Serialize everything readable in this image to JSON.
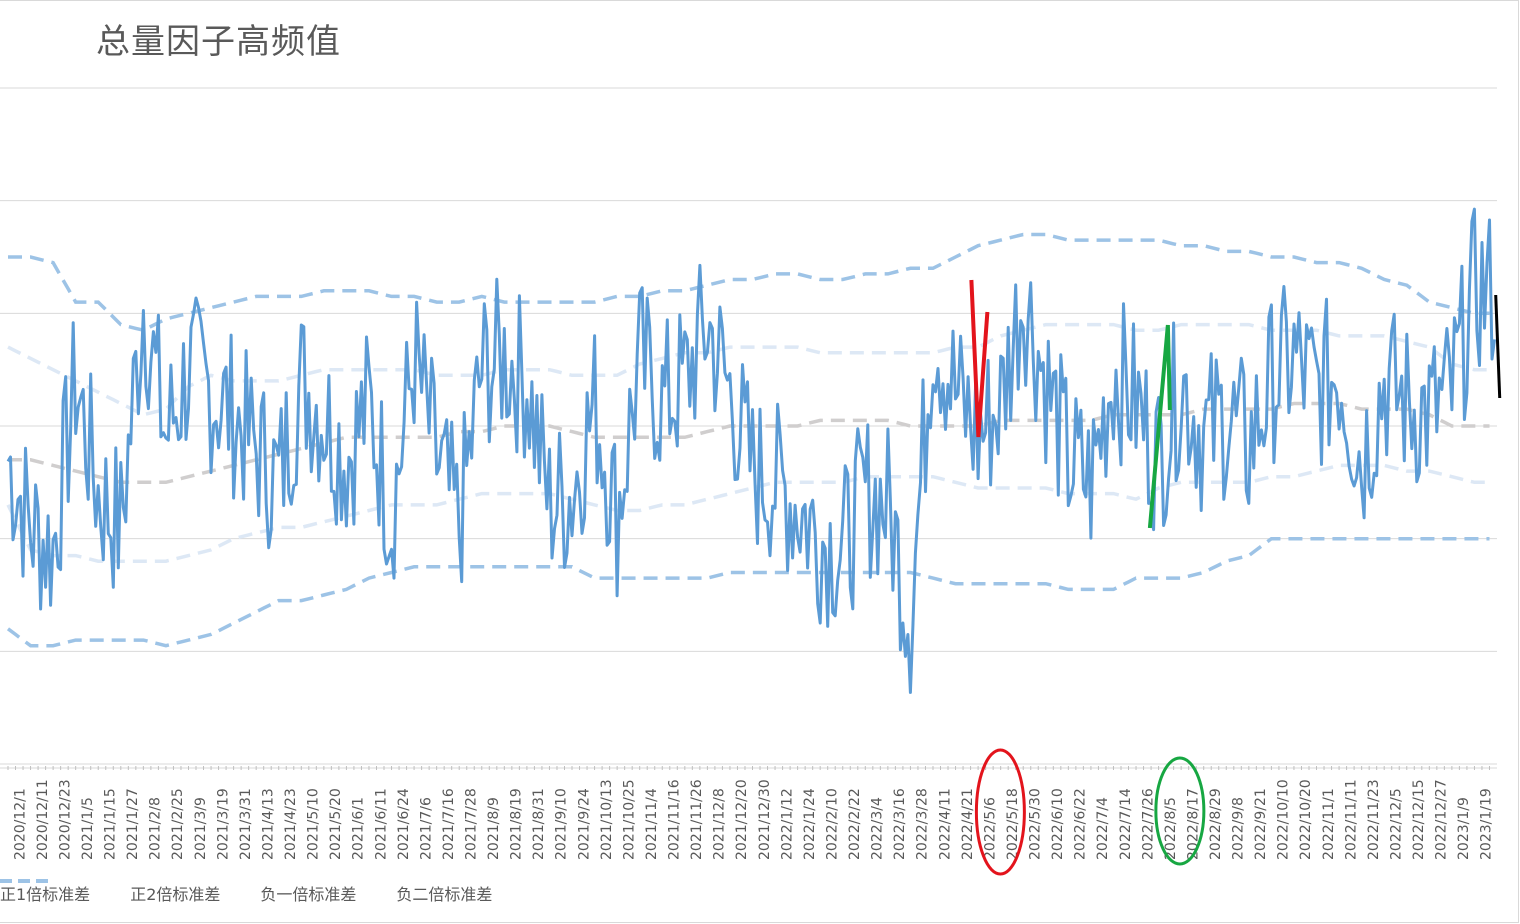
{
  "chart_data": {
    "type": "line",
    "title": "总量因子高频值",
    "xlabel": "",
    "ylabel": "",
    "grid": true,
    "legend_position": "bottom",
    "categories": [
      "2020/12/1",
      "2020/12/11",
      "2020/12/23",
      "2021/1/5",
      "2021/1/15",
      "2021/1/27",
      "2021/2/8",
      "2021/2/25",
      "2021/3/9",
      "2021/3/19",
      "2021/3/31",
      "2021/4/13",
      "2021/4/23",
      "2021/5/10",
      "2021/5/20",
      "2021/6/1",
      "2021/6/11",
      "2021/6/24",
      "2021/7/6",
      "2021/7/16",
      "2021/7/28",
      "2021/8/9",
      "2021/8/19",
      "2021/8/31",
      "2021/9/10",
      "2021/9/24",
      "2021/10/13",
      "2021/10/25",
      "2021/11/4",
      "2021/11/16",
      "2021/11/26",
      "2021/12/8",
      "2021/12/20",
      "2021/12/30",
      "2022/1/12",
      "2022/1/24",
      "2022/2/10",
      "2022/2/22",
      "2022/3/4",
      "2022/3/16",
      "2022/3/28",
      "2022/4/11",
      "2022/4/21",
      "2022/5/6",
      "2022/5/18",
      "2022/5/30",
      "2022/6/10",
      "2022/6/22",
      "2022/7/4",
      "2022/7/14",
      "2022/7/26",
      "2022/8/5",
      "2022/8/17",
      "2022/8/29",
      "2022/9/8",
      "2022/9/21",
      "2022/10/10",
      "2022/10/20",
      "2022/11/1",
      "2022/11/11",
      "2022/11/23",
      "2022/12/5",
      "2022/12/15",
      "2022/12/27",
      "2023/1/9",
      "2023/1/19"
    ],
    "main_values": [
      -0.3,
      -0.9,
      -1.1,
      0.4,
      -0.6,
      -0.9,
      1.1,
      -0.1,
      0.5,
      0.3,
      0.1,
      -0.2,
      -0.5,
      0.4,
      0.1,
      -0.3,
      0.2,
      -0.8,
      0.6,
      -0.3,
      -0.9,
      0.5,
      0.6,
      0.4,
      -0.7,
      -0.6,
      0.2,
      -0.8,
      0.6,
      0.2,
      0.4,
      0.9,
      0.3,
      -0.4,
      -0.5,
      -0.7,
      -1.0,
      -1.1,
      -0.6,
      -0.7,
      -1.7,
      0.9,
      0.3,
      -0.1,
      0.2,
      1.2,
      0.4,
      -0.3,
      -0.5,
      0.5,
      0.2,
      -0.3,
      0.4,
      -0.1,
      0.1,
      -0.2,
      0.4,
      0.6,
      0.3,
      0.5,
      -0.3,
      0.4,
      0.2,
      0.1,
      0.3,
      1.2
    ],
    "series": [
      {
        "name": "正1倍标准差",
        "values": [
          0.7,
          0.6,
          0.5,
          0.4,
          0.3,
          0.2,
          0.1,
          0.15,
          0.35,
          0.45,
          0.4,
          0.4,
          0.4,
          0.45,
          0.5,
          0.5,
          0.5,
          0.5,
          0.5,
          0.45,
          0.45,
          0.45,
          0.5,
          0.5,
          0.5,
          0.45,
          0.45,
          0.45,
          0.55,
          0.6,
          0.65,
          0.65,
          0.7,
          0.7,
          0.7,
          0.7,
          0.65,
          0.65,
          0.65,
          0.65,
          0.65,
          0.65,
          0.7,
          0.7,
          0.8,
          0.85,
          0.9,
          0.9,
          0.9,
          0.9,
          0.85,
          0.85,
          0.9,
          0.9,
          0.9,
          0.9,
          0.85,
          0.85,
          0.85,
          0.8,
          0.8,
          0.8,
          0.75,
          0.7,
          0.55,
          0.5
        ]
      },
      {
        "name": "正2倍标准差",
        "values": [
          1.5,
          1.5,
          1.45,
          1.1,
          1.1,
          0.9,
          0.85,
          0.95,
          1.0,
          1.05,
          1.1,
          1.15,
          1.15,
          1.15,
          1.2,
          1.2,
          1.2,
          1.15,
          1.15,
          1.1,
          1.1,
          1.15,
          1.1,
          1.1,
          1.1,
          1.1,
          1.1,
          1.15,
          1.15,
          1.2,
          1.2,
          1.25,
          1.3,
          1.3,
          1.35,
          1.35,
          1.3,
          1.3,
          1.35,
          1.35,
          1.4,
          1.4,
          1.5,
          1.6,
          1.65,
          1.7,
          1.7,
          1.65,
          1.65,
          1.65,
          1.65,
          1.65,
          1.6,
          1.6,
          1.55,
          1.55,
          1.5,
          1.5,
          1.45,
          1.45,
          1.4,
          1.3,
          1.25,
          1.1,
          1.05,
          1.0
        ]
      },
      {
        "name": "负一倍标准差",
        "values": [
          -0.7,
          -1.1,
          -1.15,
          -1.15,
          -1.2,
          -1.2,
          -1.2,
          -1.2,
          -1.15,
          -1.1,
          -1.0,
          -0.95,
          -0.9,
          -0.9,
          -0.85,
          -0.8,
          -0.75,
          -0.7,
          -0.7,
          -0.7,
          -0.65,
          -0.6,
          -0.6,
          -0.6,
          -0.6,
          -0.65,
          -0.7,
          -0.75,
          -0.75,
          -0.7,
          -0.7,
          -0.65,
          -0.6,
          -0.55,
          -0.5,
          -0.5,
          -0.5,
          -0.5,
          -0.45,
          -0.45,
          -0.45,
          -0.45,
          -0.5,
          -0.55,
          -0.55,
          -0.55,
          -0.55,
          -0.6,
          -0.6,
          -0.6,
          -0.65,
          -0.55,
          -0.5,
          -0.5,
          -0.5,
          -0.5,
          -0.45,
          -0.45,
          -0.4,
          -0.35,
          -0.35,
          -0.35,
          -0.4,
          -0.4,
          -0.45,
          -0.5
        ]
      },
      {
        "name": "负二倍标准差",
        "values": [
          -1.8,
          -1.95,
          -1.95,
          -1.9,
          -1.9,
          -1.9,
          -1.9,
          -1.95,
          -1.9,
          -1.85,
          -1.75,
          -1.65,
          -1.55,
          -1.55,
          -1.5,
          -1.45,
          -1.35,
          -1.3,
          -1.25,
          -1.25,
          -1.25,
          -1.25,
          -1.25,
          -1.25,
          -1.25,
          -1.25,
          -1.35,
          -1.35,
          -1.35,
          -1.35,
          -1.35,
          -1.35,
          -1.3,
          -1.3,
          -1.3,
          -1.3,
          -1.3,
          -1.3,
          -1.3,
          -1.3,
          -1.3,
          -1.35,
          -1.4,
          -1.4,
          -1.4,
          -1.4,
          -1.4,
          -1.45,
          -1.45,
          -1.45,
          -1.35,
          -1.35,
          -1.35,
          -1.3,
          -1.2,
          -1.15,
          -1.0,
          -1.0,
          -1.0,
          -1.0,
          -1.0,
          -1.0,
          -1.0,
          -1.0,
          -1.0,
          -1.0
        ]
      },
      {
        "name": "",
        "values": [
          -0.3,
          -0.3,
          -0.35,
          -0.4,
          -0.45,
          -0.5,
          -0.5,
          -0.5,
          -0.45,
          -0.4,
          -0.35,
          -0.3,
          -0.25,
          -0.2,
          -0.15,
          -0.1,
          -0.1,
          -0.1,
          -0.1,
          -0.1,
          -0.05,
          -0.05,
          0.0,
          0.0,
          0.0,
          -0.05,
          -0.1,
          -0.1,
          -0.1,
          -0.1,
          -0.1,
          -0.05,
          0.0,
          0.0,
          0.0,
          0.0,
          0.05,
          0.05,
          0.05,
          0.05,
          0.0,
          0.0,
          0.0,
          0.0,
          0.05,
          0.05,
          0.05,
          0.05,
          0.05,
          0.1,
          0.1,
          0.1,
          0.1,
          0.15,
          0.15,
          0.15,
          0.15,
          0.2,
          0.2,
          0.2,
          0.15,
          0.15,
          0.15,
          0.1,
          0.0,
          0.0
        ]
      }
    ],
    "annotations": [
      {
        "label": "",
        "color": "#e3141c",
        "x_from": "2022/5/6",
        "x_to": "2022/5/18"
      },
      {
        "label": "",
        "color": "#17a742",
        "x_from": "2022/8/5",
        "x_to": "2022/8/17"
      },
      {
        "label": "",
        "color": "#000000",
        "x_at": "2023/1/19"
      }
    ],
    "colors": {
      "main": "#5b9bd5",
      "plus1": "#dde8f5",
      "plus2": "#9dc3e6",
      "minus1": "#dde8f5",
      "minus2": "#9dc3e6",
      "mean": "#d0cece",
      "grid": "#d9d9d9"
    },
    "legend": [
      {
        "label": "正1倍标准差",
        "color": "#dde8f5"
      },
      {
        "label": "正2倍标准差",
        "color": "#9dc3e6"
      },
      {
        "label": "负一倍标准差",
        "color": "#dde8f5"
      },
      {
        "label": "负二倍标准差",
        "color": "#9dc3e6"
      }
    ],
    "ylim": [
      -3,
      3
    ]
  }
}
